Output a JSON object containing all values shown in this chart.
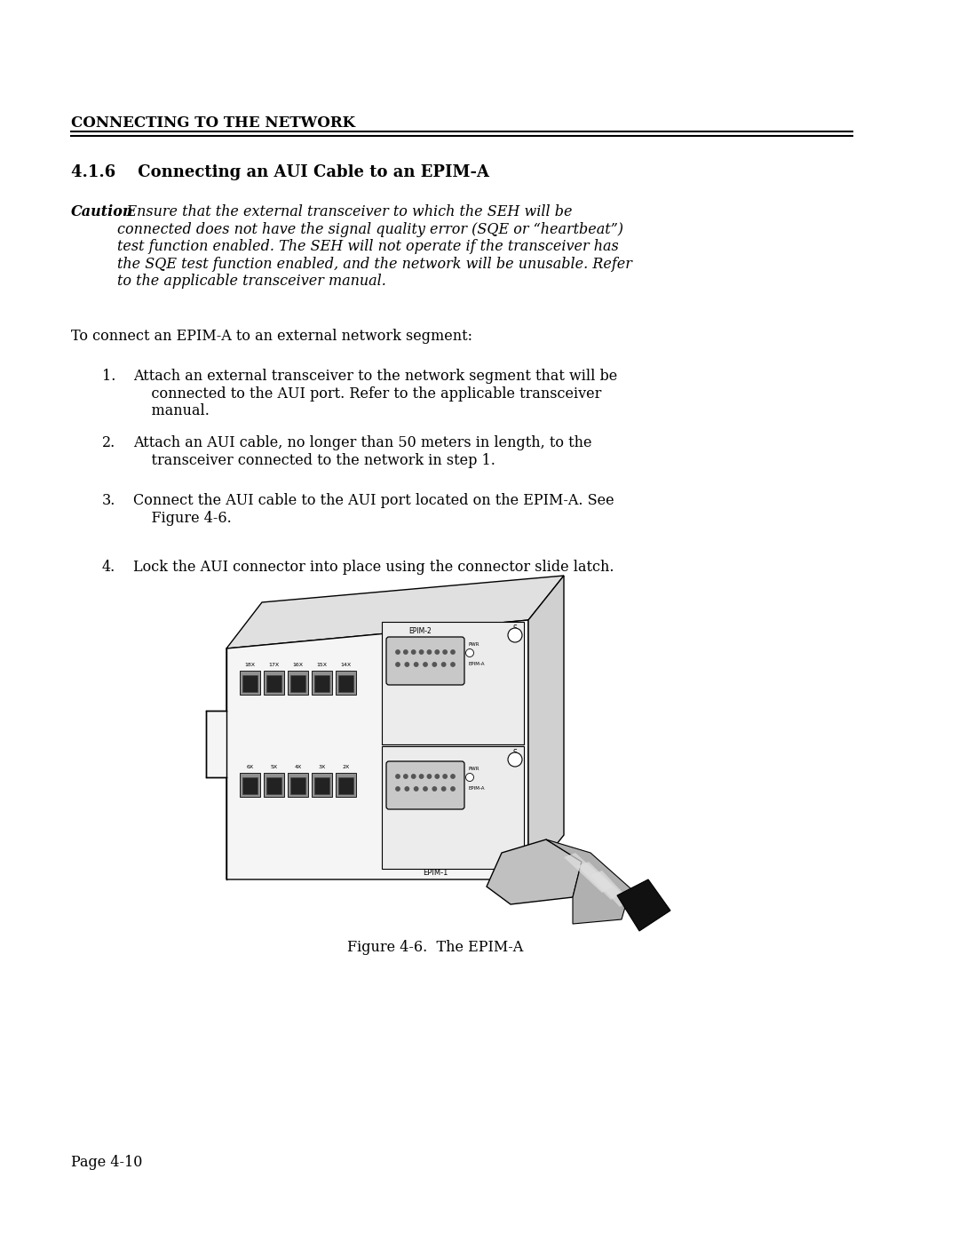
{
  "bg_color": "#ffffff",
  "header_text": "CONNECTING TO THE NETWORK",
  "section_title": "4.1.6    Connecting an AUI Cable to an EPIM-A",
  "caution_bold": "Caution",
  "caution_text": ": Ensure that the external transceiver to which the SEH will be\nconnected does not have the signal quality error (SQE or “heartbeat”)\ntest function enabled. The SEH will not operate if the transceiver has\nthe SQE test function enabled, and the network will be unusable. Refer\nto the applicable transceiver manual.",
  "intro_text": "To connect an EPIM-A to an external network segment:",
  "steps": [
    "Attach an external transceiver to the network segment that will be\n    connected to the AUI port. Refer to the applicable transceiver\n    manual.",
    "Attach an AUI cable, no longer than 50 meters in length, to the\n    transceiver connected to the network in step 1.",
    "Connect the AUI cable to the AUI port located on the EPIM-A. See\n    Figure 4-6.",
    "Lock the AUI connector into place using the connector slide latch."
  ],
  "figure_caption": "Figure 4-6.  The EPIM-A",
  "page_label": "Page 4-10",
  "text_color": "#000000"
}
